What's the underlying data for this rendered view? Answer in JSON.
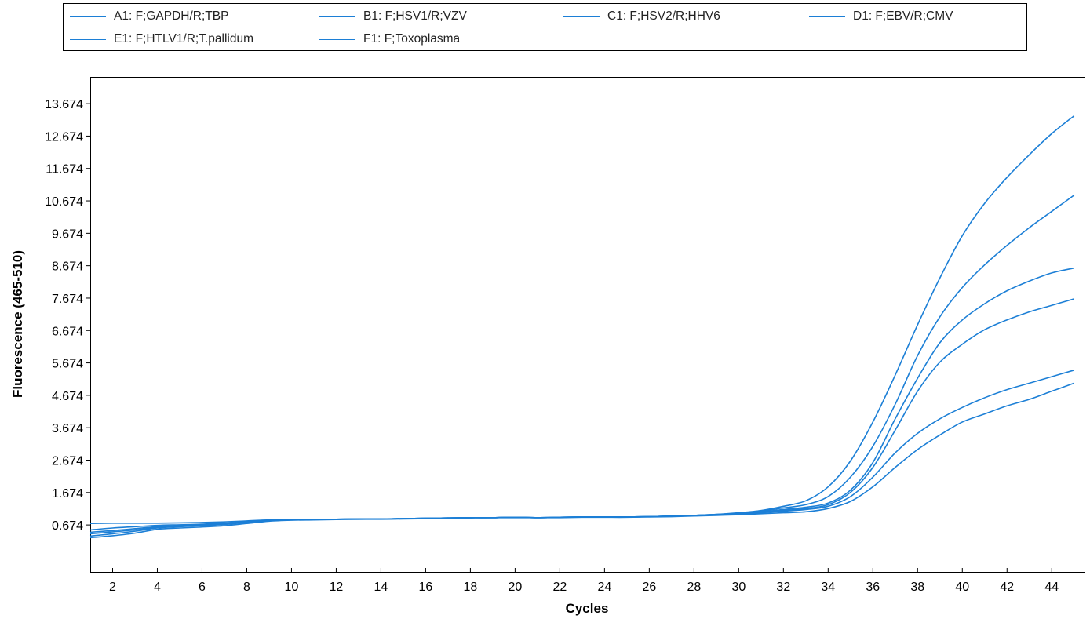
{
  "chart_data": {
    "type": "line",
    "xlabel": "Cycles",
    "ylabel": "Fluorescence (465-510)",
    "xlim": [
      1,
      45.5
    ],
    "ylim": [
      -0.8,
      14.5
    ],
    "x_ticks": [
      2,
      4,
      6,
      8,
      10,
      12,
      14,
      16,
      18,
      20,
      22,
      24,
      26,
      28,
      30,
      32,
      34,
      36,
      38,
      40,
      42,
      44
    ],
    "y_ticks": [
      0.674,
      1.674,
      2.674,
      3.674,
      4.674,
      5.674,
      6.674,
      7.674,
      8.674,
      9.674,
      10.674,
      11.674,
      12.674,
      13.674
    ],
    "y_tick_labels": [
      "0.674",
      "1.674",
      "2.674",
      "3.674",
      "4.674",
      "5.674",
      "6.674",
      "7.674",
      "8.674",
      "9.674",
      "10.674",
      "11.674",
      "12.674",
      "13.674"
    ],
    "grid": false,
    "legend_position": "top",
    "line_color": "#1c7fd6",
    "x": [
      1,
      2,
      3,
      4,
      5,
      6,
      7,
      8,
      9,
      10,
      11,
      12,
      13,
      14,
      15,
      16,
      17,
      18,
      19,
      20,
      21,
      22,
      23,
      24,
      25,
      26,
      27,
      28,
      29,
      30,
      31,
      32,
      33,
      34,
      35,
      36,
      37,
      38,
      39,
      40,
      41,
      42,
      43,
      44,
      45
    ],
    "series": [
      {
        "name": "A1: F;GAPDH/R;TBP",
        "values": [
          0.72,
          0.73,
          0.73,
          0.73,
          0.74,
          0.75,
          0.77,
          0.8,
          0.83,
          0.84,
          0.84,
          0.85,
          0.86,
          0.86,
          0.87,
          0.88,
          0.89,
          0.9,
          0.9,
          0.91,
          0.9,
          0.91,
          0.92,
          0.92,
          0.92,
          0.93,
          0.95,
          0.97,
          1.0,
          1.05,
          1.12,
          1.25,
          1.42,
          1.85,
          2.65,
          3.85,
          5.3,
          6.85,
          8.3,
          9.6,
          10.6,
          11.4,
          12.1,
          12.75,
          13.3
        ]
      },
      {
        "name": "B1: F;HSV1/R;VZV",
        "values": [
          0.52,
          0.58,
          0.62,
          0.66,
          0.68,
          0.7,
          0.73,
          0.78,
          0.82,
          0.84,
          0.84,
          0.85,
          0.86,
          0.86,
          0.87,
          0.88,
          0.89,
          0.9,
          0.9,
          0.91,
          0.9,
          0.91,
          0.92,
          0.92,
          0.92,
          0.93,
          0.95,
          0.97,
          1.0,
          1.04,
          1.1,
          1.2,
          1.3,
          1.55,
          2.15,
          3.1,
          4.4,
          5.9,
          7.1,
          8.0,
          8.7,
          9.3,
          9.85,
          10.35,
          10.85
        ]
      },
      {
        "name": "C1: F;HSV2/R;HHV6",
        "values": [
          0.45,
          0.5,
          0.56,
          0.62,
          0.65,
          0.68,
          0.72,
          0.77,
          0.82,
          0.84,
          0.84,
          0.85,
          0.86,
          0.86,
          0.87,
          0.88,
          0.89,
          0.9,
          0.9,
          0.91,
          0.9,
          0.91,
          0.92,
          0.92,
          0.92,
          0.93,
          0.95,
          0.97,
          1.0,
          1.03,
          1.08,
          1.15,
          1.22,
          1.35,
          1.75,
          2.6,
          3.95,
          5.2,
          6.3,
          7.0,
          7.5,
          7.9,
          8.2,
          8.45,
          8.6
        ]
      },
      {
        "name": "D1: F;EBV/R;CMV",
        "values": [
          0.4,
          0.46,
          0.52,
          0.6,
          0.63,
          0.66,
          0.7,
          0.76,
          0.81,
          0.83,
          0.84,
          0.85,
          0.86,
          0.86,
          0.87,
          0.88,
          0.89,
          0.9,
          0.9,
          0.91,
          0.9,
          0.91,
          0.92,
          0.92,
          0.92,
          0.93,
          0.95,
          0.97,
          0.99,
          1.02,
          1.06,
          1.12,
          1.18,
          1.3,
          1.68,
          2.45,
          3.6,
          4.8,
          5.7,
          6.25,
          6.7,
          7.0,
          7.25,
          7.45,
          7.65
        ]
      },
      {
        "name": "E1: F;HTLV1/R;T.pallidum",
        "values": [
          0.33,
          0.4,
          0.48,
          0.58,
          0.62,
          0.65,
          0.69,
          0.75,
          0.8,
          0.83,
          0.84,
          0.85,
          0.85,
          0.86,
          0.87,
          0.88,
          0.89,
          0.9,
          0.9,
          0.91,
          0.9,
          0.91,
          0.92,
          0.92,
          0.92,
          0.93,
          0.94,
          0.96,
          0.98,
          1.01,
          1.05,
          1.1,
          1.15,
          1.25,
          1.55,
          2.15,
          2.9,
          3.5,
          3.95,
          4.3,
          4.6,
          4.85,
          5.05,
          5.25,
          5.45
        ]
      },
      {
        "name": "F1: F;Toxoplasma",
        "values": [
          0.28,
          0.34,
          0.42,
          0.54,
          0.58,
          0.61,
          0.65,
          0.72,
          0.79,
          0.82,
          0.83,
          0.84,
          0.85,
          0.85,
          0.86,
          0.87,
          0.88,
          0.89,
          0.9,
          0.9,
          0.9,
          0.9,
          0.91,
          0.91,
          0.91,
          0.92,
          0.93,
          0.95,
          0.97,
          0.99,
          1.02,
          1.05,
          1.08,
          1.18,
          1.4,
          1.85,
          2.45,
          3.0,
          3.45,
          3.85,
          4.1,
          4.35,
          4.55,
          4.8,
          5.05
        ]
      }
    ]
  }
}
